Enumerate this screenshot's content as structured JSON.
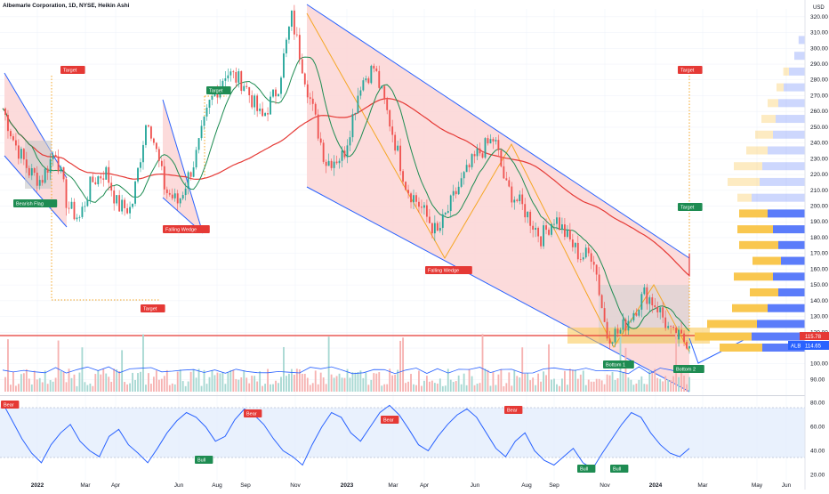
{
  "header": {
    "title": "Albemarle Corporation, 1D, NYSE, Heikin Ashi",
    "currency": "USD"
  },
  "colors": {
    "up": "#26a69a",
    "down": "#ef5350",
    "channel_fill": "#fbd5d5",
    "channel_line": "#2962ff",
    "ma_fast": "#1e8c52",
    "ma_slow": "#e53935",
    "rsi_line": "#2962ff",
    "rsi_band": "#e3eefc",
    "vp_up": "#f9c74f",
    "vp_down": "#5b7cfa"
  },
  "chart_data": [
    {
      "type": "candlestick",
      "title": "Albemarle Corporation, 1D, NYSE, Heikin Ashi",
      "y_axis": {
        "ticks": [
          "320.00",
          "310.00",
          "300.00",
          "290.00",
          "280.00",
          "270.00",
          "260.00",
          "250.00",
          "240.00",
          "230.00",
          "220.00",
          "210.00",
          "200.00",
          "190.00",
          "180.00",
          "170.00",
          "160.00",
          "150.00",
          "140.00",
          "130.00",
          "120.00",
          "110.00",
          "100.00",
          "90.00"
        ],
        "ylim": [
          88,
          325
        ]
      },
      "x_axis": {
        "ticks": [
          "2022",
          "Mar",
          "Apr",
          "Jun",
          "Aug",
          "Sep",
          "Nov",
          "2023",
          "Mar",
          "Apr",
          "Jun",
          "Aug",
          "Sep",
          "Nov",
          "2024",
          "Mar",
          "May",
          "Jun"
        ]
      },
      "price_path": [
        {
          "x": "2021-12-01",
          "y": 262
        },
        {
          "x": "2021-12-15",
          "y": 240
        },
        {
          "x": "2022-01-01",
          "y": 222
        },
        {
          "x": "2022-01-15",
          "y": 216
        },
        {
          "x": "2022-02-01",
          "y": 236
        },
        {
          "x": "2022-02-15",
          "y": 200
        },
        {
          "x": "2022-03-01",
          "y": 192
        },
        {
          "x": "2022-03-15",
          "y": 215
        },
        {
          "x": "2022-04-01",
          "y": 222
        },
        {
          "x": "2022-04-15",
          "y": 200
        },
        {
          "x": "2022-05-01",
          "y": 198
        },
        {
          "x": "2022-05-20",
          "y": 258
        },
        {
          "x": "2022-06-10",
          "y": 210
        },
        {
          "x": "2022-06-25",
          "y": 202
        },
        {
          "x": "2022-07-15",
          "y": 230
        },
        {
          "x": "2022-08-01",
          "y": 265
        },
        {
          "x": "2022-08-20",
          "y": 285
        },
        {
          "x": "2022-09-10",
          "y": 278
        },
        {
          "x": "2022-10-01",
          "y": 255
        },
        {
          "x": "2022-10-20",
          "y": 275
        },
        {
          "x": "2022-11-05",
          "y": 320
        },
        {
          "x": "2022-11-25",
          "y": 272
        },
        {
          "x": "2022-12-15",
          "y": 228
        },
        {
          "x": "2023-01-05",
          "y": 232
        },
        {
          "x": "2023-01-25",
          "y": 278
        },
        {
          "x": "2023-02-10",
          "y": 288
        },
        {
          "x": "2023-03-01",
          "y": 252
        },
        {
          "x": "2023-03-20",
          "y": 212
        },
        {
          "x": "2023-04-05",
          "y": 200
        },
        {
          "x": "2023-04-25",
          "y": 182
        },
        {
          "x": "2023-05-20",
          "y": 212
        },
        {
          "x": "2023-06-10",
          "y": 232
        },
        {
          "x": "2023-07-01",
          "y": 243
        },
        {
          "x": "2023-07-15",
          "y": 212
        },
        {
          "x": "2023-08-05",
          "y": 198
        },
        {
          "x": "2023-08-25",
          "y": 180
        },
        {
          "x": "2023-09-10",
          "y": 193
        },
        {
          "x": "2023-09-25",
          "y": 180
        },
        {
          "x": "2023-10-10",
          "y": 168
        },
        {
          "x": "2023-10-25",
          "y": 170
        },
        {
          "x": "2023-11-10",
          "y": 118
        },
        {
          "x": "2023-11-25",
          "y": 120
        },
        {
          "x": "2023-12-10",
          "y": 132
        },
        {
          "x": "2023-12-25",
          "y": 145
        },
        {
          "x": "2024-01-10",
          "y": 135
        },
        {
          "x": "2024-01-25",
          "y": 118
        },
        {
          "x": "2024-02-10",
          "y": 114.65
        }
      ],
      "last_price": "114.65",
      "alert_price": "115.78",
      "ticker": "ALB"
    },
    {
      "type": "line",
      "title": "RSI",
      "y_axis": {
        "ticks": [
          "80.00",
          "60.00",
          "40.00",
          "20.00"
        ],
        "ylim": [
          15,
          85
        ]
      },
      "band": [
        30,
        70
      ],
      "series": [
        {
          "values": [
            80,
            65,
            50,
            38,
            30,
            45,
            55,
            62,
            48,
            40,
            35,
            52,
            58,
            45,
            38,
            30,
            42,
            55,
            65,
            72,
            68,
            60,
            48,
            52,
            66,
            75,
            70,
            62,
            50,
            40,
            35,
            28,
            45,
            60,
            72,
            68,
            55,
            48,
            60,
            72,
            78,
            70,
            58,
            45,
            40,
            52,
            62,
            70,
            75,
            68,
            55,
            42,
            35,
            48,
            55,
            40,
            32,
            28,
            35,
            42,
            30,
            25,
            38,
            50,
            62,
            72,
            68,
            55,
            45,
            38,
            35,
            42
          ]
        }
      ]
    }
  ],
  "annotations": {
    "target_labels": [
      "Target",
      "Target",
      "Target",
      "Target",
      "Target"
    ],
    "pattern_labels": [
      "Bearish Flag",
      "Falling Wedge",
      "Falling Wedge"
    ],
    "bottom_labels": [
      "Bottom 1",
      "Bottom 2"
    ],
    "rsi_bear": [
      "Bear",
      "Bear",
      "Bear",
      "Bear"
    ],
    "rsi_bull": [
      "Bull",
      "Bull",
      "Bull"
    ]
  },
  "price_tags": {
    "alert": "115.78",
    "last": "114.65",
    "ticker": "ALB"
  }
}
